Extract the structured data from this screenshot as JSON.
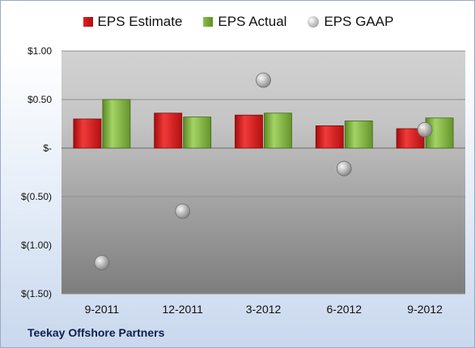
{
  "chart_data": {
    "type": "bar",
    "categories": [
      "9-2011",
      "12-2011",
      "3-2012",
      "6-2012",
      "9-2012"
    ],
    "series": [
      {
        "name": "EPS Estimate",
        "values": [
          0.3,
          0.36,
          0.34,
          0.23,
          0.2
        ],
        "color": "#cc1a1a"
      },
      {
        "name": "EPS Actual",
        "values": [
          0.5,
          0.32,
          0.36,
          0.28,
          0.31
        ],
        "color": "#77a83a"
      },
      {
        "name": "EPS GAAP",
        "values": [
          -1.18,
          -0.65,
          0.7,
          -0.21,
          0.19
        ],
        "color": "#a6a6a6",
        "style": "marker"
      }
    ],
    "yticks": [
      1.0,
      0.5,
      0,
      -0.5,
      -1.0,
      -1.5
    ],
    "ytick_labels": [
      "$1.00",
      "$0.50",
      "$-",
      "$(0.50)",
      "$(1.00)",
      "$(1.50)"
    ],
    "ylim": [
      -1.5,
      1.0
    ],
    "grid": true,
    "legend_position": "top",
    "footer": "Teekay Offshore Partners"
  }
}
